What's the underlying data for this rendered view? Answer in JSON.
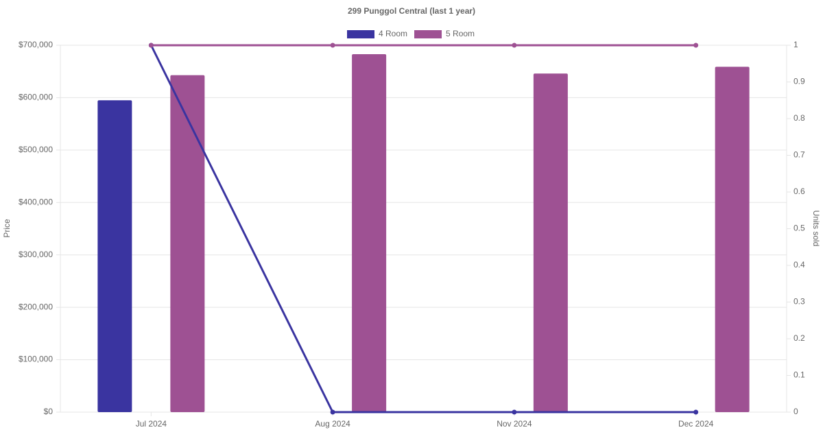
{
  "chart_data": {
    "type": "bar-line",
    "title": "299 Punggol Central (last 1 year)",
    "y_label": "Price",
    "y2_label": "Units sold",
    "categories": [
      "Jul 2024",
      "Aug 2024",
      "Nov 2024",
      "Dec 2024"
    ],
    "series": [
      {
        "name": "4 Room",
        "color": "#3a34a0",
        "values": [
          595000,
          null,
          null,
          null
        ],
        "units_sold": [
          1,
          0,
          0,
          0
        ]
      },
      {
        "name": "5 Room",
        "color": "#9e5193",
        "values": [
          643000,
          683000,
          646000,
          659000
        ],
        "units_sold": [
          1,
          1,
          1,
          1
        ]
      }
    ],
    "ylim": [
      0,
      700000
    ],
    "yticks": [
      {
        "value": 0,
        "label": "$0"
      },
      {
        "value": 100000,
        "label": "$100,000"
      },
      {
        "value": 200000,
        "label": "$200,000"
      },
      {
        "value": 300000,
        "label": "$300,000"
      },
      {
        "value": 400000,
        "label": "$400,000"
      },
      {
        "value": 500000,
        "label": "$500,000"
      },
      {
        "value": 600000,
        "label": "$600,000"
      },
      {
        "value": 700000,
        "label": "$700,000"
      }
    ],
    "y2lim": [
      0,
      1
    ],
    "y2ticks": [
      0,
      0.1,
      0.2,
      0.3,
      0.4,
      0.5,
      0.6,
      0.7,
      0.8,
      0.9,
      1
    ],
    "grid": true
  }
}
